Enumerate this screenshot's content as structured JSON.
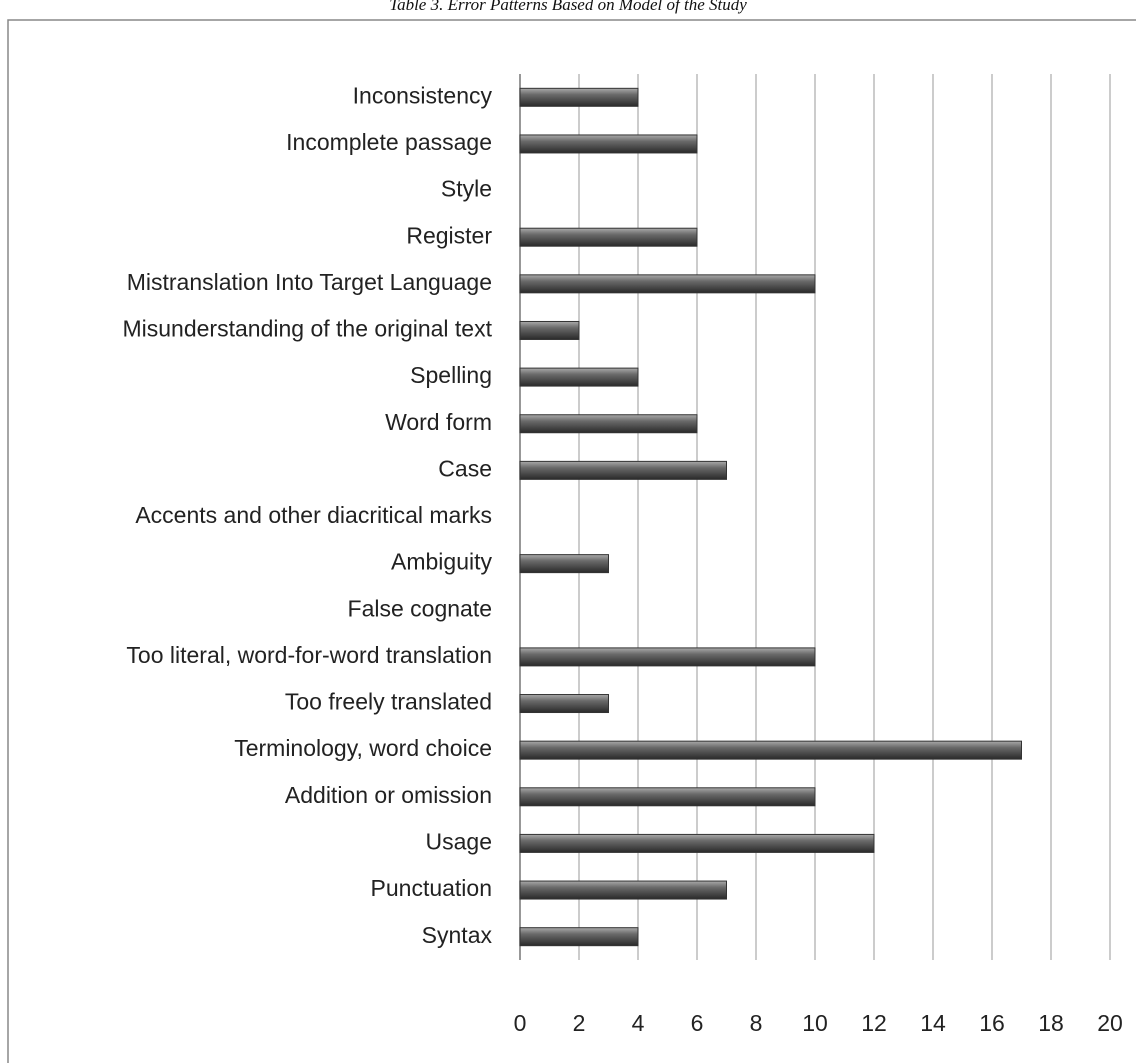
{
  "chart_data": {
    "type": "bar",
    "orientation": "horizontal",
    "title": "Table 3. Error Patterns Based on Model of the Study",
    "categories": [
      "Inconsistency",
      "Incomplete passage",
      "Style",
      "Register",
      "Mistranslation Into Target Language",
      "Misunderstanding of the original text",
      "Spelling",
      "Word form",
      "Case",
      "Accents and other diacritical marks",
      "Ambiguity",
      "False cognate",
      "Too literal, word-for-word translation",
      "Too freely translated",
      "Terminology, word choice",
      "Addition or omission",
      "Usage",
      "Punctuation",
      "Syntax"
    ],
    "values": [
      4,
      6,
      0,
      6,
      10,
      2,
      4,
      6,
      7,
      0,
      3,
      0,
      10,
      3,
      17,
      10,
      12,
      7,
      4
    ],
    "color": "#555555",
    "xlim": [
      0,
      20
    ],
    "xticks": [
      0,
      2,
      4,
      6,
      8,
      10,
      12,
      14,
      16,
      18,
      20
    ],
    "grid": true
  }
}
